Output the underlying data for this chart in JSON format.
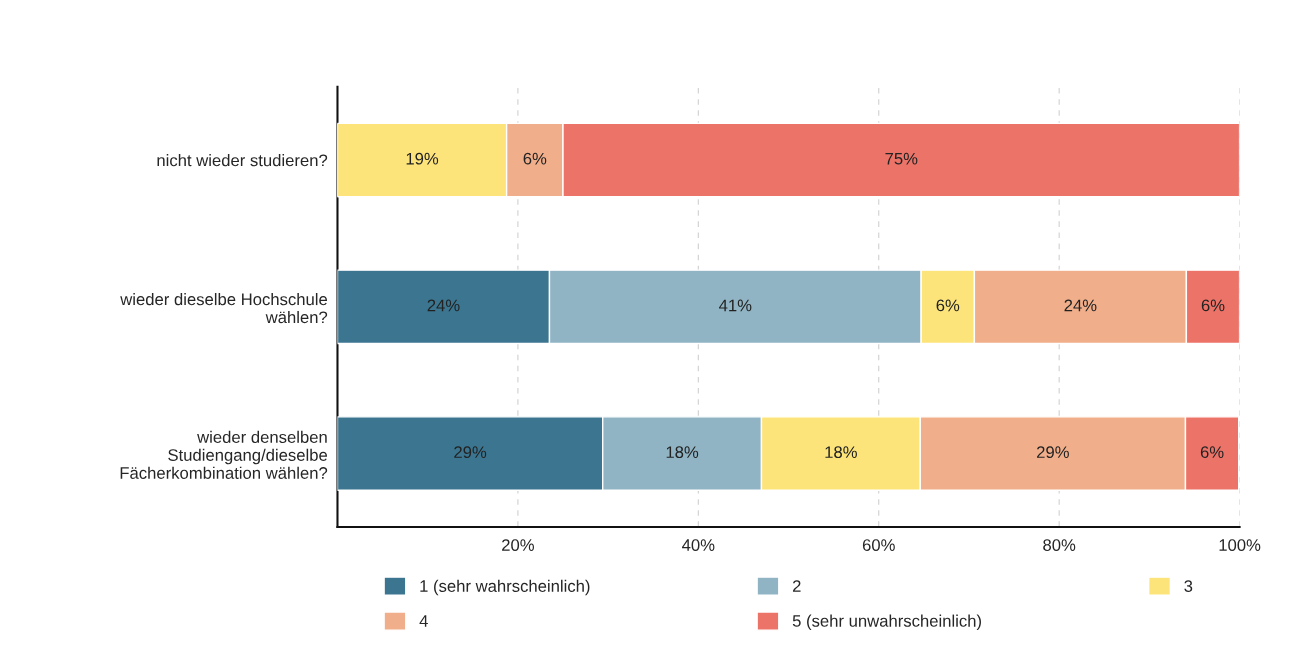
{
  "chart_data": {
    "type": "bar",
    "orientation": "horizontal",
    "stacked": true,
    "categories": [
      "nicht wieder studieren?",
      "wieder dieselbe Hochschule\nwählen?",
      "wieder denselben\nStudiengang/dieselbe\nFächerkombination wählen?"
    ],
    "series": [
      {
        "name": "1 (sehr wahrscheinlich)",
        "color": "#3b7590",
        "values": [
          0,
          23.5,
          29.4
        ],
        "value_labels": [
          null,
          "24%",
          "29%"
        ]
      },
      {
        "name": "2",
        "color": "#90b4c4",
        "values": [
          0,
          41.2,
          17.6
        ],
        "value_labels": [
          null,
          "41%",
          "18%"
        ]
      },
      {
        "name": "3",
        "color": "#fde47a",
        "values": [
          18.75,
          5.9,
          17.6
        ],
        "value_labels": [
          "19%",
          "6%",
          "18%"
        ]
      },
      {
        "name": "4",
        "color": "#f0ae8a",
        "values": [
          6.25,
          23.5,
          29.4
        ],
        "value_labels": [
          "6%",
          "24%",
          "29%"
        ]
      },
      {
        "name": "5 (sehr unwahrscheinlich)",
        "color": "#ec7368",
        "values": [
          75,
          5.9,
          5.9
        ],
        "value_labels": [
          "75%",
          "6%",
          "6%"
        ]
      }
    ],
    "xlim": [
      0,
      100
    ],
    "xticks": [
      {
        "value": 20,
        "label": "20%"
      },
      {
        "value": 40,
        "label": "40%"
      },
      {
        "value": 60,
        "label": "60%"
      },
      {
        "value": 80,
        "label": "80%"
      },
      {
        "value": 100,
        "label": "100%"
      }
    ],
    "grid": "x",
    "legend": "bottom"
  }
}
